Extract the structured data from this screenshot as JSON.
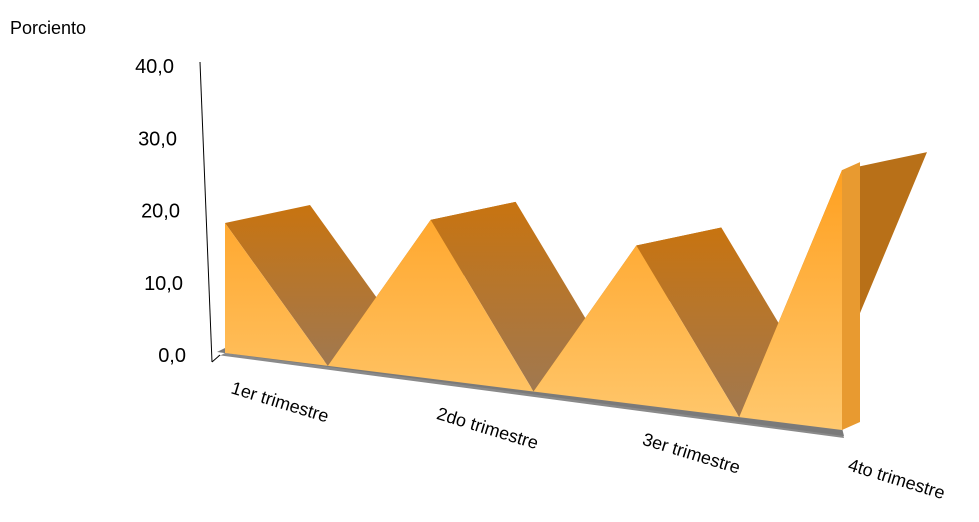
{
  "chart_data": {
    "type": "area",
    "style": "3d",
    "title": "",
    "ylabel": "Porciento",
    "xlabel": "",
    "ylim": [
      0,
      40
    ],
    "yticks": [
      "0,0",
      "10,0",
      "20,0",
      "30,0",
      "40,0"
    ],
    "categories": [
      "1er trimestre",
      "2do trimestre",
      "3er trimestre",
      "4to trimestre"
    ],
    "x": [
      "1er trimestre",
      "",
      "2do trimestre",
      "",
      "3er trimestre",
      "",
      "4to trimestre"
    ],
    "series": [
      {
        "values": [
          18.0,
          0.0,
          22.0,
          0.0,
          22.0,
          0.0,
          36.0
        ]
      }
    ],
    "legend": "none",
    "grid": false,
    "colors": {
      "front_top": "#ffa020",
      "front_bottom": "#ffc86e",
      "top_face": "#c87814",
      "slope_face": "#a07850",
      "floor": "#8a8a8a"
    }
  }
}
